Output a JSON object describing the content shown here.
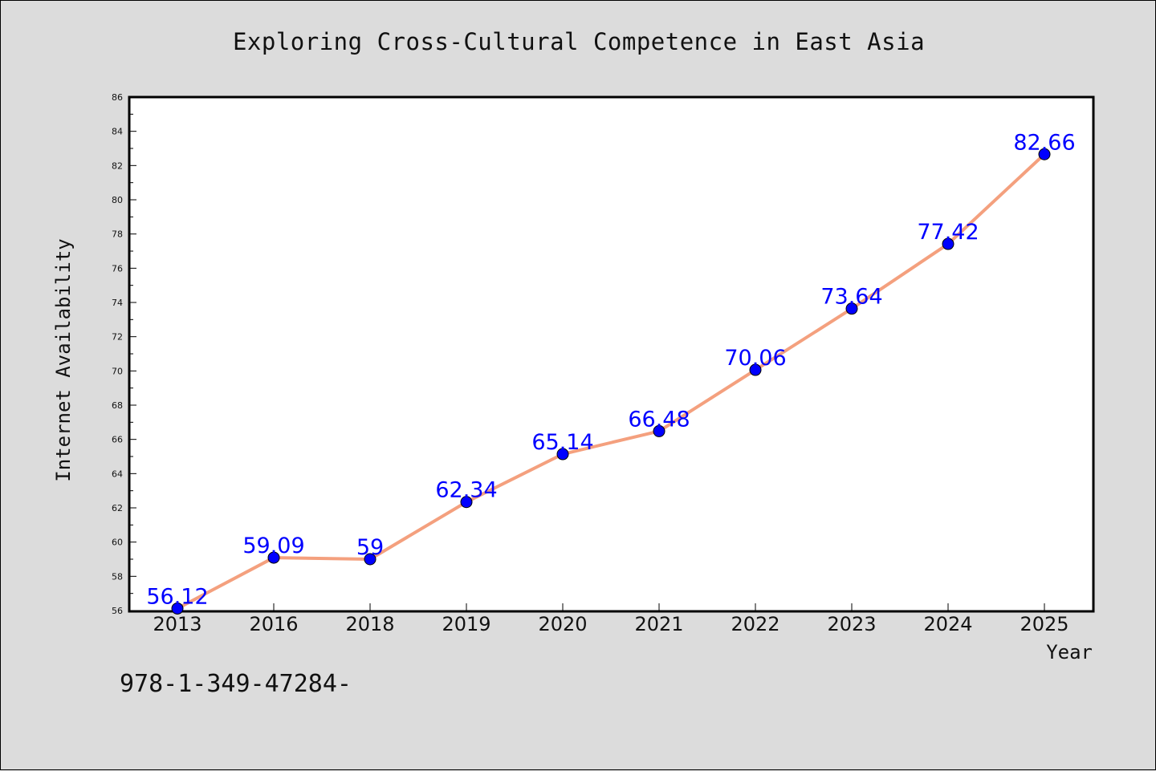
{
  "chart_data": {
    "type": "line",
    "title": "Exploring Cross-Cultural Competence in East Asia",
    "xlabel": "Year",
    "ylabel": "Internet Availability",
    "categories": [
      "2013",
      "2016",
      "2018",
      "2019",
      "2020",
      "2021",
      "2022",
      "2023",
      "2024",
      "2025"
    ],
    "values": [
      56.12,
      59.09,
      59,
      62.34,
      65.14,
      66.48,
      70.06,
      73.64,
      77.42,
      82.66
    ],
    "data_labels": [
      "56.12",
      "59.09",
      "59",
      "62.34",
      "65.14",
      "66.48",
      "70.06",
      "73.64",
      "77.42",
      "82.66"
    ],
    "ylim": [
      56,
      86
    ],
    "y_ticks": [
      "56",
      "58",
      "60",
      "62",
      "64",
      "66",
      "68",
      "70",
      "72",
      "74",
      "76",
      "78",
      "80",
      "82",
      "84",
      "86"
    ],
    "grid": false,
    "legend": "none",
    "line_color": "#f4a07e",
    "marker_color": "#0000ff",
    "label_color": "#0000ff"
  },
  "footer": {
    "code": "978-1-349-47284-"
  }
}
